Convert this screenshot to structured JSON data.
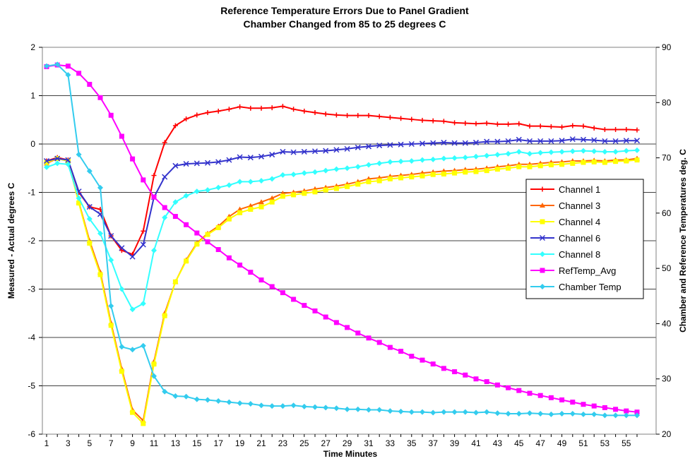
{
  "chart_data": {
    "type": "line",
    "title": "Reference Temperature Errors Due to Panel Gradient",
    "subtitle": "Chamber Changed from 85 to 25 degrees C",
    "xlabel": "Time Minutes",
    "ylabel": "Measured - Actual degrees C",
    "y2label": "Chamber and Reference Temperatures deg. C",
    "ylim": [
      -6,
      2
    ],
    "y2lim": [
      20,
      90
    ],
    "yticks": [
      "-6",
      "-5",
      "-4",
      "-3",
      "-2",
      "-1",
      "0",
      "1",
      "2"
    ],
    "y2ticks": [
      "20",
      "30",
      "40",
      "50",
      "60",
      "70",
      "80",
      "90"
    ],
    "xticks": [
      "1",
      "3",
      "5",
      "7",
      "9",
      "11",
      "13",
      "15",
      "17",
      "19",
      "21",
      "23",
      "25",
      "27",
      "29",
      "31",
      "33",
      "35",
      "37",
      "39",
      "41",
      "43",
      "45",
      "47",
      "49",
      "51",
      "53",
      "55"
    ],
    "x": [
      1,
      2,
      3,
      4,
      5,
      6,
      7,
      8,
      9,
      10,
      11,
      12,
      13,
      14,
      15,
      16,
      17,
      18,
      19,
      20,
      21,
      22,
      23,
      24,
      25,
      26,
      27,
      28,
      29,
      30,
      31,
      32,
      33,
      34,
      35,
      36,
      37,
      38,
      39,
      40,
      41,
      42,
      43,
      44,
      45,
      46,
      47,
      48,
      49,
      50,
      51,
      52,
      53,
      54,
      55,
      56
    ],
    "grid": true,
    "legend_position": "right",
    "series": [
      {
        "name": "Channel 1",
        "axis": "left",
        "color": "#ff0000",
        "marker": "plus",
        "values": [
          -0.35,
          -0.28,
          -0.33,
          -1.0,
          -1.3,
          -1.35,
          -1.9,
          -2.2,
          -2.28,
          -1.8,
          -0.65,
          0.03,
          0.38,
          0.52,
          0.6,
          0.65,
          0.68,
          0.72,
          0.77,
          0.74,
          0.74,
          0.75,
          0.78,
          0.72,
          0.68,
          0.65,
          0.62,
          0.6,
          0.59,
          0.59,
          0.59,
          0.57,
          0.55,
          0.53,
          0.51,
          0.49,
          0.48,
          0.47,
          0.44,
          0.43,
          0.42,
          0.43,
          0.41,
          0.41,
          0.42,
          0.37,
          0.37,
          0.36,
          0.35,
          0.38,
          0.37,
          0.33,
          0.3,
          0.3,
          0.3,
          0.29
        ]
      },
      {
        "name": "Channel 3",
        "axis": "left",
        "color": "#ff6600",
        "marker": "triangle",
        "values": [
          -0.4,
          -0.3,
          -0.35,
          -1.2,
          -2.0,
          -2.65,
          -3.7,
          -4.65,
          -5.5,
          -5.72,
          -4.5,
          -3.5,
          -2.85,
          -2.4,
          -2.05,
          -1.85,
          -1.7,
          -1.5,
          -1.35,
          -1.28,
          -1.2,
          -1.12,
          -1.02,
          -1.0,
          -0.97,
          -0.93,
          -0.9,
          -0.87,
          -0.83,
          -0.78,
          -0.72,
          -0.7,
          -0.67,
          -0.65,
          -0.63,
          -0.6,
          -0.58,
          -0.56,
          -0.55,
          -0.53,
          -0.52,
          -0.5,
          -0.47,
          -0.45,
          -0.42,
          -0.42,
          -0.4,
          -0.38,
          -0.37,
          -0.35,
          -0.35,
          -0.34,
          -0.35,
          -0.33,
          -0.33,
          -0.3
        ]
      },
      {
        "name": "Channel 4",
        "axis": "left",
        "color": "#ffff00",
        "marker": "square",
        "values": [
          -0.38,
          -0.3,
          -0.35,
          -1.22,
          -2.05,
          -2.7,
          -3.75,
          -4.7,
          -5.55,
          -5.78,
          -4.55,
          -3.55,
          -2.85,
          -2.42,
          -2.07,
          -1.87,
          -1.73,
          -1.55,
          -1.42,
          -1.35,
          -1.3,
          -1.2,
          -1.08,
          -1.05,
          -1.02,
          -0.99,
          -0.95,
          -0.92,
          -0.88,
          -0.83,
          -0.78,
          -0.76,
          -0.72,
          -0.7,
          -0.68,
          -0.66,
          -0.63,
          -0.62,
          -0.6,
          -0.58,
          -0.57,
          -0.55,
          -0.52,
          -0.5,
          -0.47,
          -0.47,
          -0.45,
          -0.43,
          -0.42,
          -0.4,
          -0.38,
          -0.37,
          -0.38,
          -0.36,
          -0.35,
          -0.33
        ]
      },
      {
        "name": "Channel 6",
        "axis": "left",
        "color": "#3333cc",
        "marker": "x",
        "values": [
          -0.35,
          -0.3,
          -0.33,
          -0.98,
          -1.3,
          -1.45,
          -1.9,
          -2.15,
          -2.33,
          -2.08,
          -1.1,
          -0.68,
          -0.45,
          -0.41,
          -0.4,
          -0.39,
          -0.37,
          -0.33,
          -0.27,
          -0.28,
          -0.26,
          -0.22,
          -0.16,
          -0.17,
          -0.16,
          -0.15,
          -0.14,
          -0.12,
          -0.1,
          -0.07,
          -0.05,
          -0.03,
          -0.02,
          -0.01,
          0.0,
          0.01,
          0.02,
          0.03,
          0.02,
          0.02,
          0.03,
          0.05,
          0.05,
          0.06,
          0.09,
          0.06,
          0.06,
          0.06,
          0.07,
          0.1,
          0.09,
          0.08,
          0.06,
          0.06,
          0.07,
          0.07
        ]
      },
      {
        "name": "Channel 8",
        "axis": "left",
        "color": "#33ffff",
        "marker": "diamond",
        "values": [
          -0.48,
          -0.4,
          -0.42,
          -1.12,
          -1.55,
          -1.85,
          -2.4,
          -3.0,
          -3.42,
          -3.3,
          -2.2,
          -1.52,
          -1.2,
          -1.07,
          -0.98,
          -0.95,
          -0.9,
          -0.85,
          -0.78,
          -0.78,
          -0.76,
          -0.72,
          -0.64,
          -0.63,
          -0.6,
          -0.58,
          -0.55,
          -0.52,
          -0.5,
          -0.47,
          -0.43,
          -0.4,
          -0.37,
          -0.36,
          -0.35,
          -0.33,
          -0.32,
          -0.3,
          -0.29,
          -0.28,
          -0.26,
          -0.24,
          -0.22,
          -0.2,
          -0.16,
          -0.2,
          -0.18,
          -0.17,
          -0.16,
          -0.15,
          -0.14,
          -0.15,
          -0.16,
          -0.16,
          -0.14,
          -0.13
        ]
      },
      {
        "name": "RefTemp_Avg",
        "axis": "right",
        "color": "#ff00ff",
        "marker": "square",
        "values": [
          86.5,
          86.8,
          86.6,
          85.3,
          83.3,
          80.9,
          77.7,
          73.9,
          69.8,
          66.0,
          62.9,
          61.0,
          59.4,
          57.9,
          56.4,
          54.8,
          53.4,
          51.9,
          50.6,
          49.3,
          47.9,
          46.7,
          45.6,
          44.4,
          43.3,
          42.3,
          41.2,
          40.2,
          39.3,
          38.3,
          37.4,
          36.6,
          35.7,
          35.0,
          34.1,
          33.4,
          32.7,
          31.9,
          31.3,
          30.7,
          30.0,
          29.5,
          28.9,
          28.4,
          27.9,
          27.4,
          27.0,
          26.6,
          26.2,
          25.8,
          25.4,
          25.1,
          24.8,
          24.5,
          24.2,
          24.0
        ]
      },
      {
        "name": "Chamber Temp",
        "axis": "right",
        "color": "#33ccee",
        "marker": "diamond",
        "values": [
          86.6,
          86.9,
          85.0,
          70.6,
          67.6,
          64.6,
          43.2,
          35.8,
          35.3,
          36.0,
          30.5,
          27.7,
          26.9,
          26.8,
          26.3,
          26.2,
          26.0,
          25.8,
          25.6,
          25.5,
          25.2,
          25.1,
          25.1,
          25.2,
          25.0,
          24.9,
          24.8,
          24.7,
          24.5,
          24.5,
          24.4,
          24.4,
          24.2,
          24.1,
          24.0,
          24.0,
          23.9,
          24.0,
          24.0,
          24.0,
          23.9,
          24.0,
          23.8,
          23.7,
          23.7,
          23.8,
          23.7,
          23.6,
          23.7,
          23.7,
          23.6,
          23.6,
          23.4,
          23.4,
          23.4,
          23.4
        ]
      }
    ]
  }
}
